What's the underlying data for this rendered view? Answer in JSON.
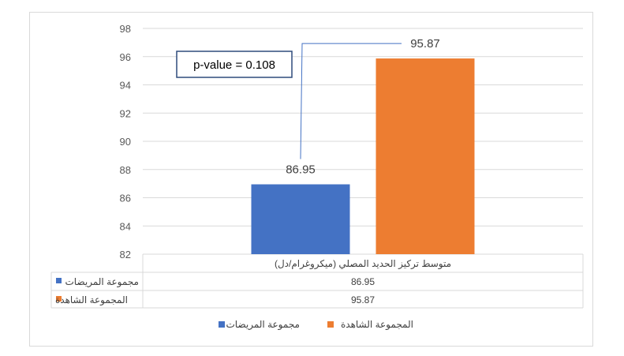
{
  "chart_data": {
    "type": "bar",
    "categories": [
      "متوسط تركيز الحديد المصلي (ميكروغرام/دل)"
    ],
    "series": [
      {
        "name": "مجموعة المريضات",
        "values": [
          86.95
        ],
        "color": "#4472c4"
      },
      {
        "name": "المجموعة الشاهدة",
        "values": [
          95.87
        ],
        "color": "#ed7d31"
      }
    ],
    "ylim": [
      82,
      98
    ],
    "yticks": [
      82,
      84,
      86,
      88,
      90,
      92,
      94,
      96,
      98
    ],
    "data_labels": [
      "86.95",
      "95.87"
    ],
    "annotation": "p-value = 0.108",
    "grid": true,
    "legend_position": "bottom",
    "data_table": {
      "header": "متوسط تركيز الحديد المصلي (ميكروغرام/دل)",
      "rows": [
        {
          "label": "مجموعة المريضات",
          "value": "86.95"
        },
        {
          "label": "المجموعة الشاهدة",
          "value": "95.87"
        }
      ]
    }
  }
}
